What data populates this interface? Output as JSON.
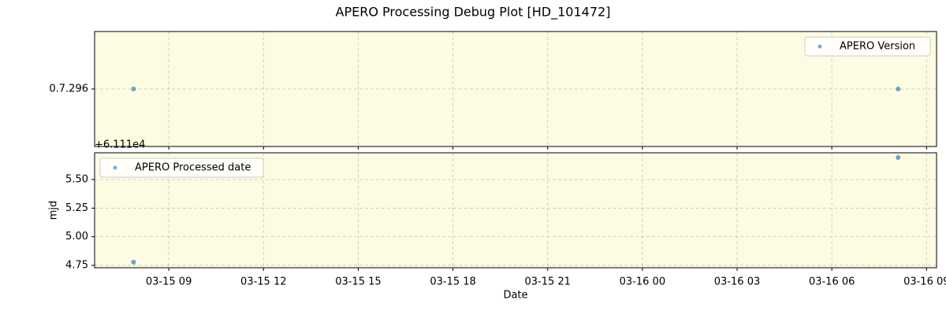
{
  "chart_data": [
    {
      "type": "scatter",
      "title": "APERO Processing Debug Plot [HD_101472]",
      "x": [
        "03-15 07:53",
        "03-16 08:06"
      ],
      "series": [
        {
          "name": "APERO Version",
          "color": "#1f77b4",
          "values": [
            "0.7.296",
            "0.7.296"
          ]
        }
      ],
      "yticks": [
        "0.7.296"
      ],
      "grid": true,
      "legend": "upper right",
      "background": "#fdfbe2"
    },
    {
      "type": "scatter",
      "x": [
        "03-15 07:53",
        "03-16 08:06"
      ],
      "series": [
        {
          "name": "APERO Processed date",
          "color": "#1f77b4",
          "values": [
            4.778,
            5.693
          ]
        }
      ],
      "xlim": [
        "03-15 06:39",
        "03-16 09:19"
      ],
      "xticks": [
        "03-15 09",
        "03-15 12",
        "03-15 15",
        "03-15 18",
        "03-15 21",
        "03-16 00",
        "03-16 03",
        "03-16 06",
        "03-16 09"
      ],
      "xlabel": "Date",
      "ylabel": "mjd",
      "y_offset_label": "+6.111e4",
      "ylim": [
        4.729,
        5.734
      ],
      "yticks": [
        {
          "value": 4.75,
          "label": "4.75"
        },
        {
          "value": 5.0,
          "label": "5.00"
        },
        {
          "value": 5.25,
          "label": "5.25"
        },
        {
          "value": 5.5,
          "label": "5.50"
        }
      ],
      "grid": true,
      "legend": "upper left",
      "background": "#fdfbe2"
    }
  ]
}
